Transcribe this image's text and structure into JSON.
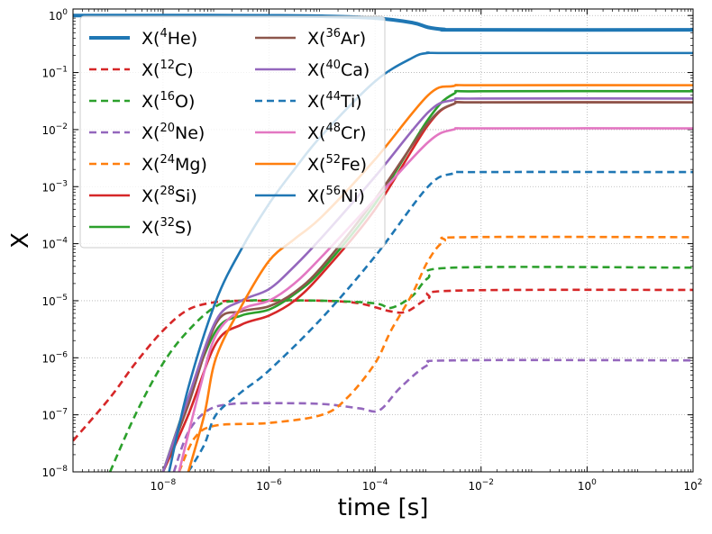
{
  "chart_data": {
    "type": "line",
    "title": "",
    "xlabel": "time [s]",
    "ylabel": "X",
    "xscale": "log",
    "yscale": "log",
    "xlim": [
      2e-10,
      100
    ],
    "ylim": [
      1e-08,
      1.3
    ],
    "grid": "on (dotted)",
    "legend_position": "top-left",
    "legend_columns": 2,
    "x_ticks": [
      {
        "value": 1e-08,
        "base": "10",
        "exp": "−8"
      },
      {
        "value": 1e-06,
        "base": "10",
        "exp": "−6"
      },
      {
        "value": 0.0001,
        "base": "10",
        "exp": "−4"
      },
      {
        "value": 0.01,
        "base": "10",
        "exp": "−2"
      },
      {
        "value": 1,
        "base": "10",
        "exp": "0"
      },
      {
        "value": 100,
        "base": "10",
        "exp": "2"
      }
    ],
    "y_ticks": [
      {
        "value": 1e-08,
        "base": "10",
        "exp": "−8"
      },
      {
        "value": 1e-07,
        "base": "10",
        "exp": "−7"
      },
      {
        "value": 1e-06,
        "base": "10",
        "exp": "−6"
      },
      {
        "value": 1e-05,
        "base": "10",
        "exp": "−5"
      },
      {
        "value": 0.0001,
        "base": "10",
        "exp": "−4"
      },
      {
        "value": 0.001,
        "base": "10",
        "exp": "−3"
      },
      {
        "value": 0.01,
        "base": "10",
        "exp": "−2"
      },
      {
        "value": 0.1,
        "base": "10",
        "exp": "−1"
      },
      {
        "value": 1,
        "base": "10",
        "exp": "0"
      }
    ],
    "series": [
      {
        "name": "X(4He)",
        "label_pre": "X(",
        "label_sup": "4",
        "label_post": "He)",
        "color": "#1f77b4",
        "style": "solid",
        "width": "thick",
        "points": [
          [
            2e-10,
            1.0
          ],
          [
            1e-08,
            1.0
          ],
          [
            1e-06,
            0.99
          ],
          [
            1e-05,
            0.97
          ],
          [
            0.0001,
            0.9
          ],
          [
            0.0005,
            0.75
          ],
          [
            0.001,
            0.62
          ],
          [
            0.002,
            0.57
          ],
          [
            0.005,
            0.56
          ],
          [
            100,
            0.56
          ]
        ]
      },
      {
        "name": "X(12C)",
        "label_pre": "X(",
        "label_sup": "12",
        "label_post": "C)",
        "color": "#d62728",
        "style": "dashed",
        "width": "normal",
        "points": [
          [
            2e-10,
            3.5e-08
          ],
          [
            1e-09,
            2e-07
          ],
          [
            3e-09,
            8e-07
          ],
          [
            1e-08,
            3e-06
          ],
          [
            3e-08,
            7e-06
          ],
          [
            1e-07,
            9.5e-06
          ],
          [
            3e-07,
            1e-05
          ],
          [
            1e-06,
            1e-05
          ],
          [
            1e-05,
            1e-05
          ],
          [
            5e-05,
            9e-06
          ],
          [
            0.0002,
            6.5e-06
          ],
          [
            0.0004,
            6.5e-06
          ],
          [
            0.001,
            1.1e-05
          ],
          [
            0.003,
            1.5e-05
          ],
          [
            100,
            1.55e-05
          ]
        ]
      },
      {
        "name": "X(16O)",
        "label_pre": "X(",
        "label_sup": "16",
        "label_post": "O)",
        "color": "#2ca02c",
        "style": "dashed",
        "width": "normal",
        "points": [
          [
            1e-09,
            1e-08
          ],
          [
            3e-09,
            1e-07
          ],
          [
            1e-08,
            8e-07
          ],
          [
            3e-08,
            3e-06
          ],
          [
            1e-07,
            8e-06
          ],
          [
            3e-07,
            1e-05
          ],
          [
            1e-05,
            1e-05
          ],
          [
            0.0001,
            9e-06
          ],
          [
            0.0002,
            7.5e-06
          ],
          [
            0.0005,
            1.2e-05
          ],
          [
            0.001,
            2.5e-05
          ],
          [
            0.003,
            3.8e-05
          ],
          [
            100,
            3.8e-05
          ]
        ]
      },
      {
        "name": "X(20Ne)",
        "label_pre": "X(",
        "label_sup": "20",
        "label_post": "Ne)",
        "color": "#9467bd",
        "style": "dashed",
        "width": "normal",
        "points": [
          [
            1.6e-08,
            1e-08
          ],
          [
            3e-08,
            5e-08
          ],
          [
            7e-08,
            1.2e-07
          ],
          [
            2e-07,
            1.55e-07
          ],
          [
            1e-06,
            1.6e-07
          ],
          [
            1e-05,
            1.55e-07
          ],
          [
            5e-05,
            1.3e-07
          ],
          [
            0.00012,
            1.2e-07
          ],
          [
            0.0003,
            3e-07
          ],
          [
            0.001,
            7.5e-07
          ],
          [
            0.003,
            9e-07
          ],
          [
            100,
            9e-07
          ]
        ]
      },
      {
        "name": "X(24Mg)",
        "label_pre": "X(",
        "label_sup": "24",
        "label_post": "Mg)",
        "color": "#ff7f0e",
        "style": "dashed",
        "width": "normal",
        "points": [
          [
            2e-08,
            1e-08
          ],
          [
            4e-08,
            4e-08
          ],
          [
            1e-07,
            6.5e-08
          ],
          [
            1e-06,
            7.2e-08
          ],
          [
            1e-05,
            1e-07
          ],
          [
            3e-05,
            2e-07
          ],
          [
            0.0001,
            8e-07
          ],
          [
            0.0002,
            3e-06
          ],
          [
            0.0005,
            1.3e-05
          ],
          [
            0.001,
            5e-05
          ],
          [
            0.002,
            0.00011
          ],
          [
            0.005,
            0.00013
          ],
          [
            100,
            0.00013
          ]
        ]
      },
      {
        "name": "X(28Si)",
        "label_pre": "X(",
        "label_sup": "28",
        "label_post": "Si)",
        "color": "#d62728",
        "style": "solid",
        "width": "normal",
        "points": [
          [
            1e-08,
            1e-08
          ],
          [
            3e-08,
            1e-07
          ],
          [
            1e-07,
            1.8e-06
          ],
          [
            3e-07,
            3.8e-06
          ],
          [
            1e-06,
            5.5e-06
          ],
          [
            3e-06,
            1e-05
          ],
          [
            1e-05,
            3e-05
          ],
          [
            0.0001,
            0.0004
          ],
          [
            0.001,
            0.012
          ],
          [
            0.003,
            0.028
          ],
          [
            0.01,
            0.03
          ],
          [
            100,
            0.03
          ]
        ]
      },
      {
        "name": "X(32S)",
        "label_pre": "X(",
        "label_sup": "32",
        "label_post": "S)",
        "color": "#2ca02c",
        "style": "solid",
        "width": "normal",
        "points": [
          [
            1e-08,
            1e-08
          ],
          [
            3e-08,
            2e-07
          ],
          [
            1e-07,
            3e-06
          ],
          [
            3e-07,
            5.5e-06
          ],
          [
            1e-06,
            7e-06
          ],
          [
            3e-06,
            1.3e-05
          ],
          [
            1e-05,
            3.5e-05
          ],
          [
            0.0001,
            0.0005
          ],
          [
            0.001,
            0.015
          ],
          [
            0.003,
            0.042
          ],
          [
            0.01,
            0.047
          ],
          [
            100,
            0.047
          ]
        ]
      },
      {
        "name": "X(36Ar)",
        "label_pre": "X(",
        "label_sup": "36",
        "label_post": "Ar)",
        "color": "#8c564b",
        "style": "solid",
        "width": "normal",
        "points": [
          [
            1e-08,
            1e-08
          ],
          [
            3e-08,
            1.5e-07
          ],
          [
            1e-07,
            4e-06
          ],
          [
            3e-07,
            6.5e-06
          ],
          [
            1e-06,
            8e-06
          ],
          [
            3e-06,
            1.4e-05
          ],
          [
            1e-05,
            4e-05
          ],
          [
            0.0001,
            0.0006
          ],
          [
            0.001,
            0.013
          ],
          [
            0.003,
            0.028
          ],
          [
            0.01,
            0.03
          ],
          [
            100,
            0.03
          ]
        ]
      },
      {
        "name": "X(40Ca)",
        "label_pre": "X(",
        "label_sup": "40",
        "label_post": "Ca)",
        "color": "#9467bd",
        "style": "solid",
        "width": "normal",
        "points": [
          [
            1e-08,
            1e-08
          ],
          [
            3e-08,
            2e-07
          ],
          [
            1e-07,
            4.5e-06
          ],
          [
            3e-07,
            1e-05
          ],
          [
            1e-06,
            1.6e-05
          ],
          [
            3e-06,
            4e-05
          ],
          [
            1e-05,
            0.00013
          ],
          [
            0.0001,
            0.0015
          ],
          [
            0.001,
            0.02
          ],
          [
            0.003,
            0.033
          ],
          [
            0.01,
            0.035
          ],
          [
            100,
            0.035
          ]
        ]
      },
      {
        "name": "X(44Ti)",
        "label_pre": "X(",
        "label_sup": "44",
        "label_post": "Ti)",
        "color": "#1f77b4",
        "style": "dashed",
        "width": "normal",
        "points": [
          [
            3e-08,
            1e-08
          ],
          [
            6e-08,
            3e-08
          ],
          [
            1e-07,
            1e-07
          ],
          [
            3e-07,
            2.5e-07
          ],
          [
            1e-06,
            6e-07
          ],
          [
            1e-05,
            5e-06
          ],
          [
            0.0001,
            6e-05
          ],
          [
            0.001,
            0.001
          ],
          [
            0.003,
            0.0017
          ],
          [
            0.01,
            0.0018
          ],
          [
            100,
            0.0018
          ]
        ]
      },
      {
        "name": "X(48Cr)",
        "label_pre": "X(",
        "label_sup": "48",
        "label_post": "Cr)",
        "color": "#e377c2",
        "style": "solid",
        "width": "normal",
        "points": [
          [
            2e-08,
            1e-08
          ],
          [
            5e-08,
            3e-07
          ],
          [
            1e-07,
            2.5e-06
          ],
          [
            3e-07,
            7e-06
          ],
          [
            1e-06,
            1e-05
          ],
          [
            3e-06,
            2e-05
          ],
          [
            1e-05,
            6e-05
          ],
          [
            0.0001,
            0.0006
          ],
          [
            0.001,
            0.006
          ],
          [
            0.003,
            0.01
          ],
          [
            0.01,
            0.0105
          ],
          [
            100,
            0.0105
          ]
        ]
      },
      {
        "name": "X(52Fe)",
        "label_pre": "X(",
        "label_sup": "52",
        "label_post": "Fe)",
        "color": "#ff7f0e",
        "style": "solid",
        "width": "normal",
        "points": [
          [
            3e-08,
            1e-08
          ],
          [
            6e-08,
            1e-07
          ],
          [
            1e-07,
            1e-06
          ],
          [
            3e-07,
            8e-06
          ],
          [
            1e-06,
            5e-05
          ],
          [
            3e-06,
            0.00012
          ],
          [
            1e-05,
            0.0003
          ],
          [
            0.0001,
            0.003
          ],
          [
            0.001,
            0.04
          ],
          [
            0.003,
            0.058
          ],
          [
            0.01,
            0.06
          ],
          [
            100,
            0.06
          ]
        ]
      },
      {
        "name": "X(56Ni)",
        "label_pre": "X(",
        "label_sup": "56",
        "label_post": "Ni)",
        "color": "#1f77b4",
        "style": "solid",
        "width": "normal",
        "points": [
          [
            1.3e-08,
            1e-08
          ],
          [
            3e-08,
            3e-07
          ],
          [
            1e-07,
            1e-05
          ],
          [
            3e-07,
            8e-05
          ],
          [
            1e-06,
            0.0005
          ],
          [
            3e-06,
            0.002
          ],
          [
            1e-05,
            0.008
          ],
          [
            0.0001,
            0.07
          ],
          [
            0.0005,
            0.18
          ],
          [
            0.001,
            0.22
          ],
          [
            0.003,
            0.22
          ],
          [
            100,
            0.22
          ]
        ]
      }
    ]
  }
}
